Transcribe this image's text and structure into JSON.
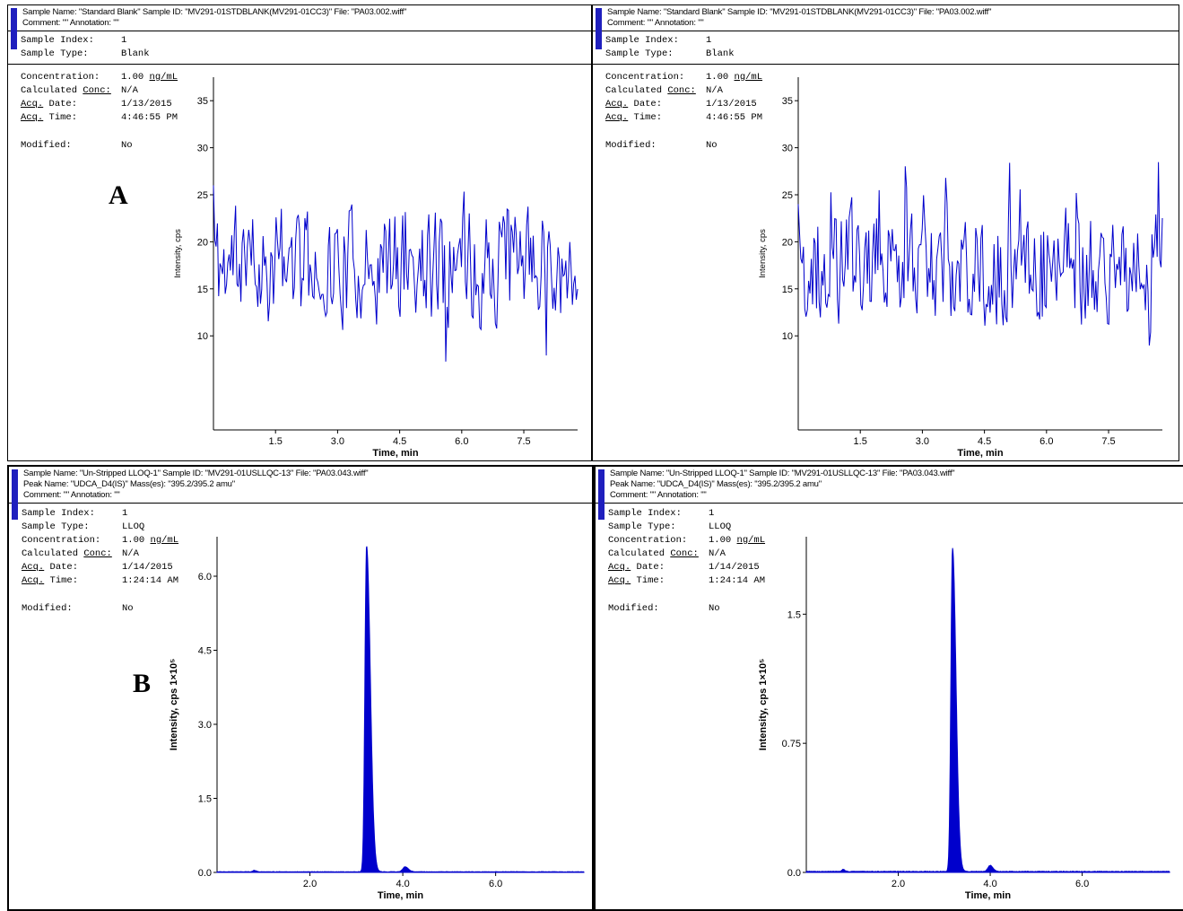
{
  "figure": {
    "label_a": "A",
    "label_b": "B"
  },
  "panels": [
    {
      "header": {
        "line1": "Sample Name: \"Standard Blank\"  Sample ID: \"MV291-01STDBLANK(MV291-01CC3)\"  File: \"PA03.002.wiff\"",
        "line2": "Comment: \"\"  Annotation: \"\""
      },
      "meta": {
        "index_label": "Sample Index:",
        "index": "1",
        "type_label": "Sample Type:",
        "type": "Blank",
        "conc_label": "Concentration:",
        "conc_val": "1.00 ",
        "conc_unit": "ng/mL",
        "calc_label_a": "Calculated ",
        "calc_label_b": "Conc:",
        "calc_val": "N/A",
        "acq": "Acq.",
        "date_label": " Date:",
        "date_val": "1/13/2015",
        "time_label": " Time:",
        "time_val": "4:46:55 PM",
        "mod_label": "Modified:",
        "mod_val": "No"
      }
    },
    {
      "header": {
        "line1": "Sample Name: \"Standard Blank\"  Sample ID: \"MV291-01STDBLANK(MV291-01CC3)\"  File: \"PA03.002.wiff\"",
        "line2": "Comment: \"\"  Annotation: \"\""
      },
      "meta": {
        "index_label": "Sample Index:",
        "index": "1",
        "type_label": "Sample Type:",
        "type": "Blank",
        "conc_label": "Concentration:",
        "conc_val": "1.00 ",
        "conc_unit": "ng/mL",
        "calc_label_a": "Calculated ",
        "calc_label_b": "Conc:",
        "calc_val": "N/A",
        "acq": "Acq.",
        "date_label": " Date:",
        "date_val": "1/13/2015",
        "time_label": " Time:",
        "time_val": "4:46:55 PM",
        "mod_label": "Modified:",
        "mod_val": "No"
      }
    },
    {
      "header": {
        "line1": "Sample Name: \"Un-Stripped LLOQ-1\"  Sample ID: \"MV291-01USLLQC-13\"  File: \"PA03.043.wiff\"",
        "line2": "Peak Name: \"UDCA_D4(IS)\"  Mass(es): \"395.2/395.2 amu\"",
        "line3": "Comment: \"\"  Annotation: \"\""
      },
      "meta": {
        "index_label": "Sample Index:",
        "index": "1",
        "type_label": "Sample Type:",
        "type": "LLOQ",
        "conc_label": "Concentration:",
        "conc_val": "1.00 ",
        "conc_unit": "ng/mL",
        "calc_label_a": "Calculated ",
        "calc_label_b": "Conc:",
        "calc_val": "N/A",
        "acq": "Acq.",
        "date_label": " Date:",
        "date_val": "1/14/2015",
        "time_label": " Time:",
        "time_val": "1:24:14 AM",
        "mod_label": "Modified:",
        "mod_val": "No"
      }
    },
    {
      "header": {
        "line1": "Sample Name: \"Un-Stripped LLOQ-1\"  Sample ID: \"MV291-01USLLQC-13\"  File: \"PA03.043.wiff\"",
        "line2": "Peak Name: \"UDCA_D4(IS)\"  Mass(es): \"395.2/395.2 amu\"",
        "line3": "Comment: \"\"  Annotation: \"\""
      },
      "meta": {
        "index_label": "Sample Index:",
        "index": "1",
        "type_label": "Sample Type:",
        "type": "LLOQ",
        "conc_label": "Concentration:",
        "conc_val": "1.00 ",
        "conc_unit": "ng/mL",
        "calc_label_a": "Calculated ",
        "calc_label_b": "Conc:",
        "calc_val": "N/A",
        "acq": "Acq.",
        "date_label": " Date:",
        "date_val": "1/14/2015",
        "time_label": " Time:",
        "time_val": "1:24:14 AM",
        "mod_label": "Modified:",
        "mod_val": "No"
      }
    }
  ],
  "chart_data": [
    {
      "type": "line",
      "kind": "noise",
      "panel": "A-left",
      "title": "Blank chromatogram (baseline noise only, no peak)",
      "xlabel": "Time, min",
      "ylabel": "Intensity,  cps",
      "xlim": [
        0,
        8.8
      ],
      "ylim": [
        0,
        37.5
      ],
      "xticks": {
        "values": [
          1.5,
          3.0,
          4.5,
          6.0,
          7.5
        ],
        "labels": [
          "1.5",
          "3.0",
          "4.5",
          "6.0",
          "7.5"
        ]
      },
      "yticks": {
        "values": [
          10,
          15,
          20,
          25,
          30,
          35
        ],
        "labels": [
          "10",
          "15",
          "20",
          "25",
          "30",
          "35"
        ]
      },
      "color": "#0000cc",
      "signal_range_cps": [
        6.5,
        37
      ],
      "gen": {
        "seed": 11,
        "points": 280,
        "start": 26,
        "mean": 17.5,
        "ar": 0.3,
        "amp": 11,
        "spike": 17,
        "spike_p": 0.08,
        "vmin": 6.4,
        "vmax": 37.2
      }
    },
    {
      "type": "line",
      "kind": "noise",
      "panel": "A-right",
      "title": "Blank chromatogram (baseline noise only, no peak)",
      "xlabel": "Time, min",
      "ylabel": "Intensity,  cps",
      "xlim": [
        0,
        8.8
      ],
      "ylim": [
        0,
        37.5
      ],
      "xticks": {
        "values": [
          1.5,
          3.0,
          4.5,
          6.0,
          7.5
        ],
        "labels": [
          "1.5",
          "3.0",
          "4.5",
          "6.0",
          "7.5"
        ]
      },
      "yticks": {
        "values": [
          10,
          15,
          20,
          25,
          30,
          35
        ],
        "labels": [
          "10",
          "15",
          "20",
          "25",
          "30",
          "35"
        ]
      },
      "color": "#0000cc",
      "signal_range_cps": [
        6.3,
        35.5
      ],
      "gen": {
        "seed": 47,
        "points": 280,
        "start": 24,
        "mean": 17.5,
        "ar": 0.3,
        "amp": 11,
        "spike": 16,
        "spike_p": 0.08,
        "vmin": 6.2,
        "vmax": 35.6
      }
    },
    {
      "type": "area",
      "kind": "peak",
      "panel": "B-left",
      "title": "LLOQ chromatogram, UDCA_D4(IS) peak",
      "xlabel": "Time, min",
      "ylabel": "Intensity,  cps 1×10⁵",
      "xlim": [
        0,
        7.9
      ],
      "ylim": [
        0,
        6.8
      ],
      "xticks": {
        "values": [
          2.0,
          4.0,
          6.0
        ],
        "labels": [
          "2.0",
          "4.0",
          "6.0"
        ]
      },
      "yticks": {
        "values": [
          0,
          1.5,
          3.0,
          4.5,
          6.0
        ],
        "labels": [
          "0.0",
          "1.5",
          "3.0",
          "4.5",
          "6.0"
        ]
      },
      "color": "#0000cc",
      "peaks": [
        {
          "name": "UDCA_D4(IS)",
          "rt_min": 3.22,
          "height": 6.6,
          "sigma_l": 0.035,
          "sigma_r": 0.08
        },
        {
          "name": "minor",
          "rt_min": 4.05,
          "height": 0.1,
          "sigma_l": 0.05,
          "sigma_r": 0.07
        },
        {
          "name": "minor",
          "rt_min": 0.8,
          "height": 0.03,
          "sigma_l": 0.03,
          "sigma_r": 0.04
        }
      ],
      "gen": {
        "seed": 5,
        "points": 900,
        "baseline": 0.012,
        "noise": 0.01
      }
    },
    {
      "type": "area",
      "kind": "peak",
      "panel": "B-right",
      "title": "LLOQ chromatogram, UDCA_D4(IS) peak",
      "xlabel": "Time, min",
      "ylabel": "Intensity,  cps 1×10⁵",
      "xlim": [
        0,
        7.9
      ],
      "ylim": [
        0,
        1.95
      ],
      "xticks": {
        "values": [
          2.0,
          4.0,
          6.0
        ],
        "labels": [
          "2.0",
          "4.0",
          "6.0"
        ]
      },
      "yticks": {
        "values": [
          0,
          0.75,
          1.5
        ],
        "labels": [
          "0.0",
          "0.75",
          "1.5"
        ]
      },
      "color": "#0000cc",
      "peaks": [
        {
          "name": "UDCA_D4(IS)",
          "rt_min": 3.18,
          "height": 1.88,
          "sigma_l": 0.035,
          "sigma_r": 0.075
        },
        {
          "name": "minor",
          "rt_min": 4.0,
          "height": 0.035,
          "sigma_l": 0.05,
          "sigma_r": 0.06
        },
        {
          "name": "minor",
          "rt_min": 0.8,
          "height": 0.012,
          "sigma_l": 0.03,
          "sigma_r": 0.04
        }
      ],
      "gen": {
        "seed": 9,
        "points": 900,
        "baseline": 0.005,
        "noise": 0.004
      }
    }
  ]
}
